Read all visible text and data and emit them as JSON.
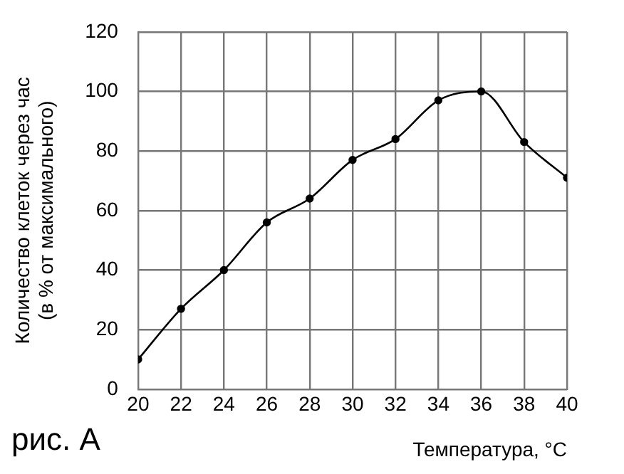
{
  "chart_data": {
    "type": "line",
    "xlabel": "Температура, °C",
    "ylabel": "Количество клеток через час\n(в % от максимального)",
    "annotations": [
      "рис. А"
    ],
    "x": [
      20,
      22,
      24,
      26,
      28,
      30,
      32,
      34,
      36,
      38,
      40
    ],
    "series": [
      {
        "color": "#000000",
        "values": [
          10,
          27,
          40,
          56,
          64,
          77,
          84,
          97,
          100,
          83,
          71
        ]
      }
    ],
    "xlim": [
      20,
      40
    ],
    "xticks": [
      20,
      22,
      24,
      26,
      28,
      30,
      32,
      34,
      36,
      38,
      40
    ],
    "ylim": [
      0,
      120
    ],
    "yticks": [
      0,
      20,
      40,
      60,
      80,
      100,
      120
    ],
    "grid": true,
    "marker": "circle",
    "line_style": "solid",
    "legend": false
  }
}
